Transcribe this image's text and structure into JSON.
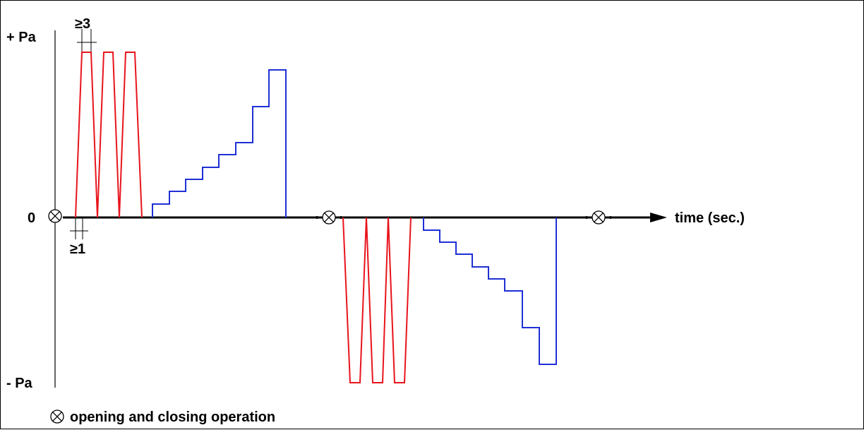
{
  "axis": {
    "y_positive_label": "+ Pa",
    "y_negative_label": "- Pa",
    "zero_label": "0",
    "x_label": "time (sec.)"
  },
  "annotations": {
    "pulse_width_min": "≥3",
    "gap_min": "≥1"
  },
  "legend": {
    "symbol": "⊗",
    "text": "opening and closing operation"
  },
  "colors": {
    "pulse": "#e8141c",
    "step": "#1f2fd6",
    "axis": "#000000"
  }
}
